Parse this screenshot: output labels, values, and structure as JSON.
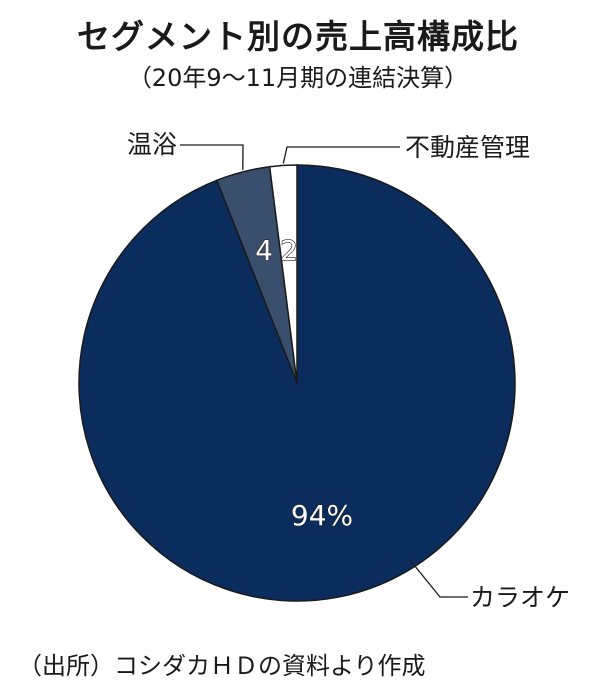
{
  "chart_data": {
    "type": "pie",
    "title": "セグメント別の売上高構成比",
    "subtitle": "（20年9～11月期の連結決算）",
    "categories": [
      "カラオケ",
      "温浴",
      "不動産管理"
    ],
    "values": [
      94,
      4,
      2
    ],
    "data_labels": [
      "94%",
      "4",
      "2"
    ],
    "colors": [
      "#0b2d5e",
      "#3a4f6e",
      "#ffffff"
    ],
    "start_angle": "12 o'clock, clockwise from カラオケ",
    "source": "（出所）コシダカＨＤの資料より作成"
  }
}
